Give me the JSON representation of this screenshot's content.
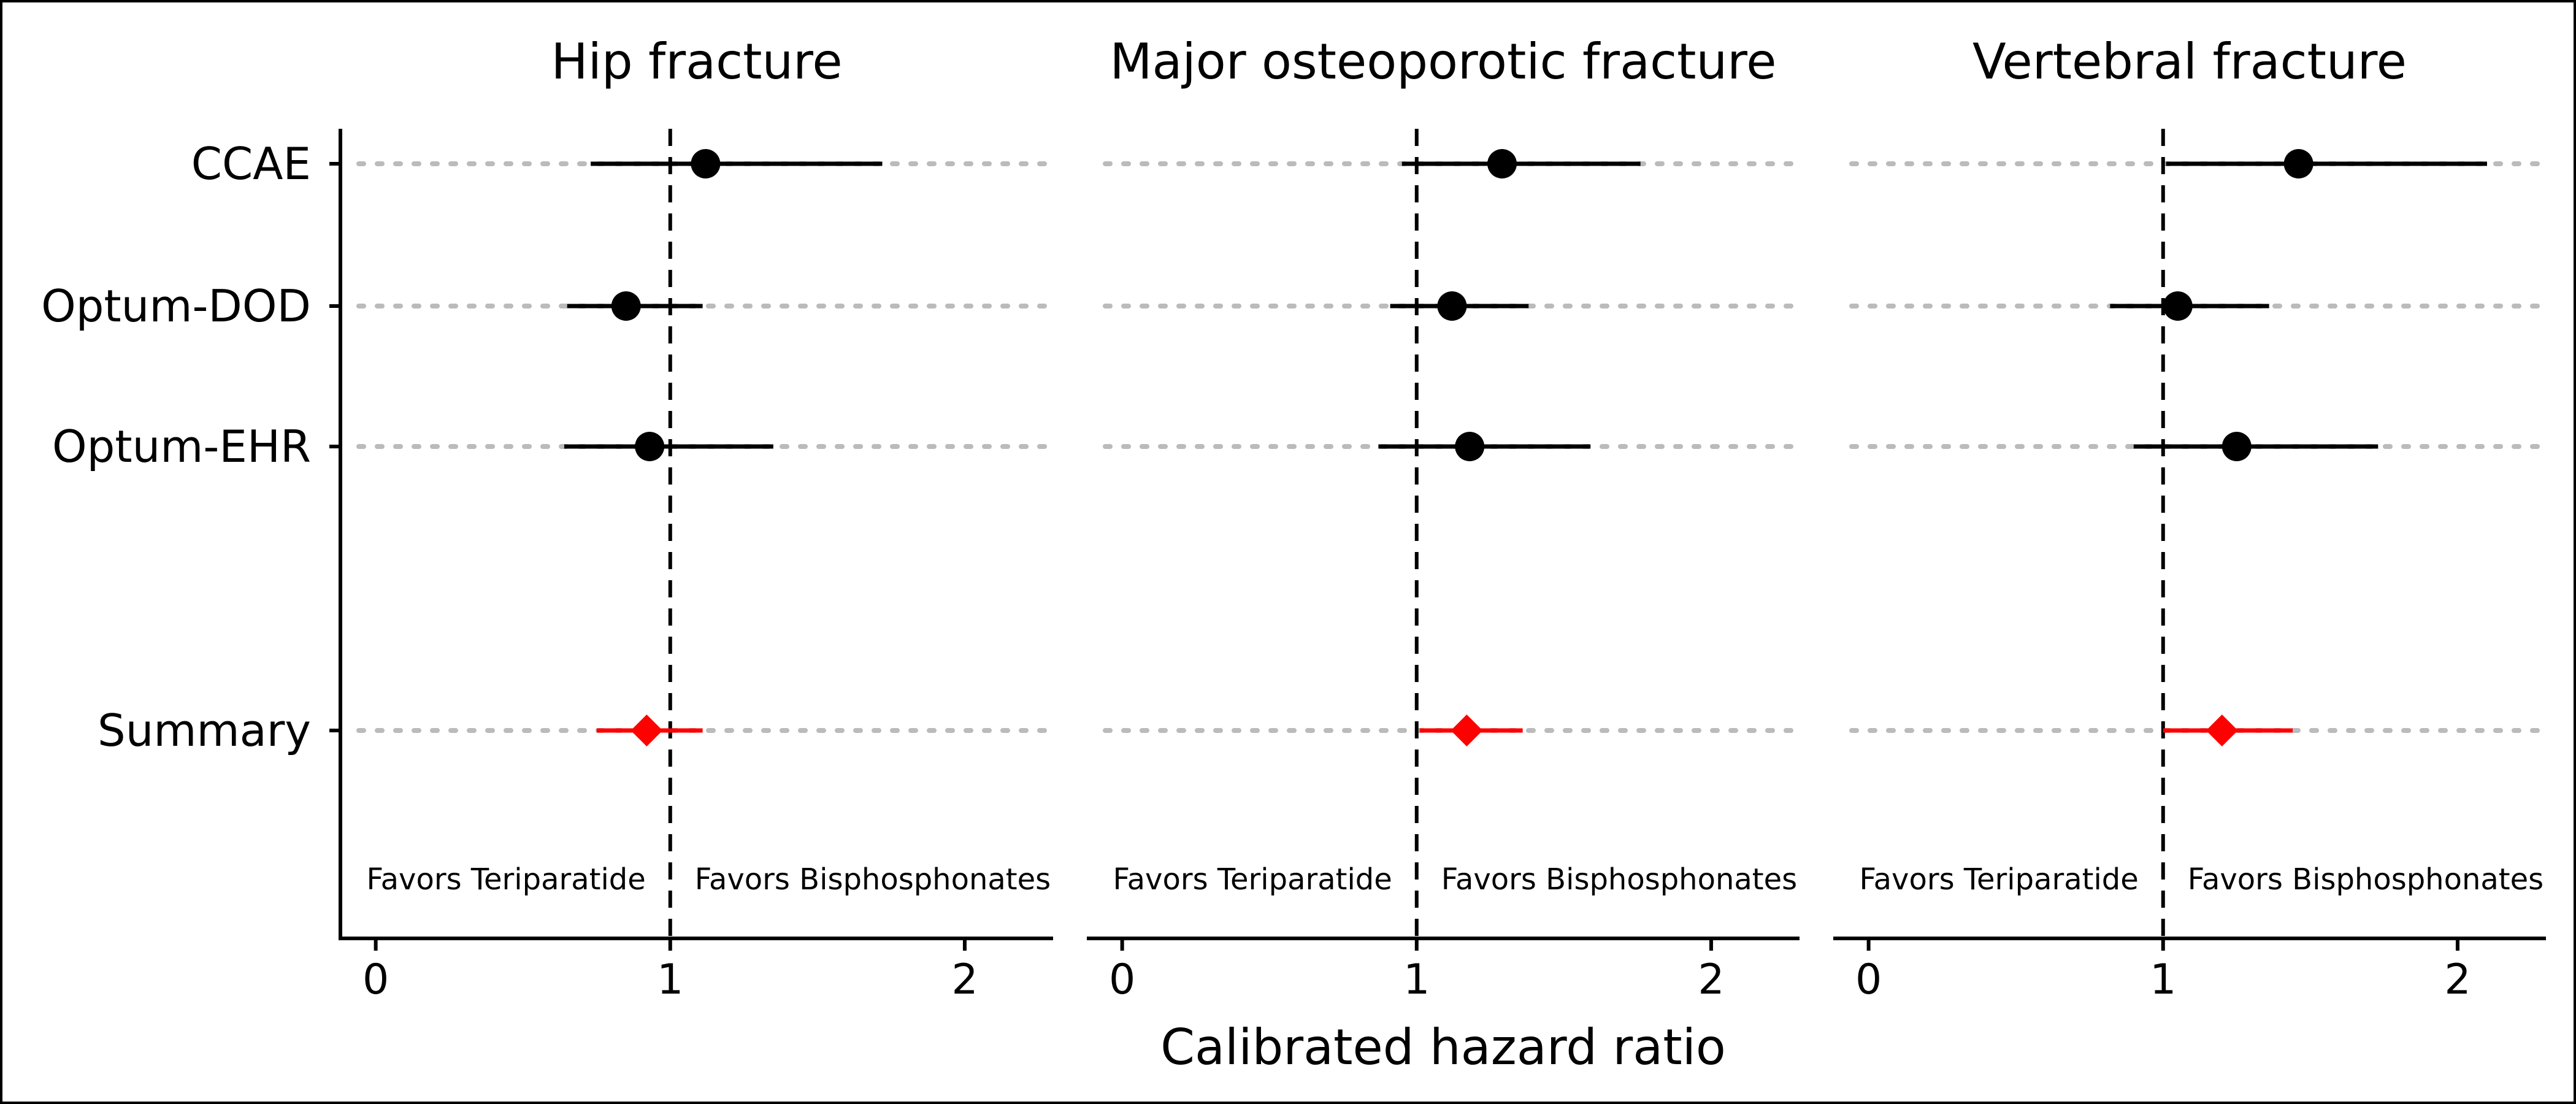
{
  "chart_data": {
    "type": "forest",
    "xlabel": "Calibrated hazard ratio",
    "xlim": [
      -0.12,
      2.3
    ],
    "x_ticks": [
      0,
      1,
      2
    ],
    "x_tick_labels": [
      "0",
      "1",
      "2"
    ],
    "reference_line": 1,
    "rows": [
      "CCAE",
      "Optum-DOD",
      "Optum-EHR",
      "Summary"
    ],
    "favor_labels": {
      "left": "Favors Teriparatide",
      "right": "Favors Bisphosphonates"
    },
    "colors": {
      "source": "#000000",
      "summary": "#ff0000",
      "guide": "#bbbbbb"
    },
    "panels": [
      {
        "title": "Hip fracture",
        "estimates": [
          {
            "row": "CCAE",
            "hr": 1.12,
            "lo": 0.73,
            "hi": 1.72
          },
          {
            "row": "Optum-DOD",
            "hr": 0.85,
            "lo": 0.65,
            "hi": 1.11
          },
          {
            "row": "Optum-EHR",
            "hr": 0.93,
            "lo": 0.64,
            "hi": 1.35
          },
          {
            "row": "Summary",
            "hr": 0.92,
            "lo": 0.75,
            "hi": 1.11
          }
        ]
      },
      {
        "title": "Major osteoporotic fracture",
        "estimates": [
          {
            "row": "CCAE",
            "hr": 1.29,
            "lo": 0.95,
            "hi": 1.76
          },
          {
            "row": "Optum-DOD",
            "hr": 1.12,
            "lo": 0.91,
            "hi": 1.38
          },
          {
            "row": "Optum-EHR",
            "hr": 1.18,
            "lo": 0.87,
            "hi": 1.59
          },
          {
            "row": "Summary",
            "hr": 1.17,
            "lo": 1.01,
            "hi": 1.36
          }
        ]
      },
      {
        "title": "Vertebral fracture",
        "estimates": [
          {
            "row": "CCAE",
            "hr": 1.46,
            "lo": 1.01,
            "hi": 2.1
          },
          {
            "row": "Optum-DOD",
            "hr": 1.05,
            "lo": 0.82,
            "hi": 1.36
          },
          {
            "row": "Optum-EHR",
            "hr": 1.25,
            "lo": 0.9,
            "hi": 1.73
          },
          {
            "row": "Summary",
            "hr": 1.2,
            "lo": 1.0,
            "hi": 1.44
          }
        ]
      }
    ]
  }
}
